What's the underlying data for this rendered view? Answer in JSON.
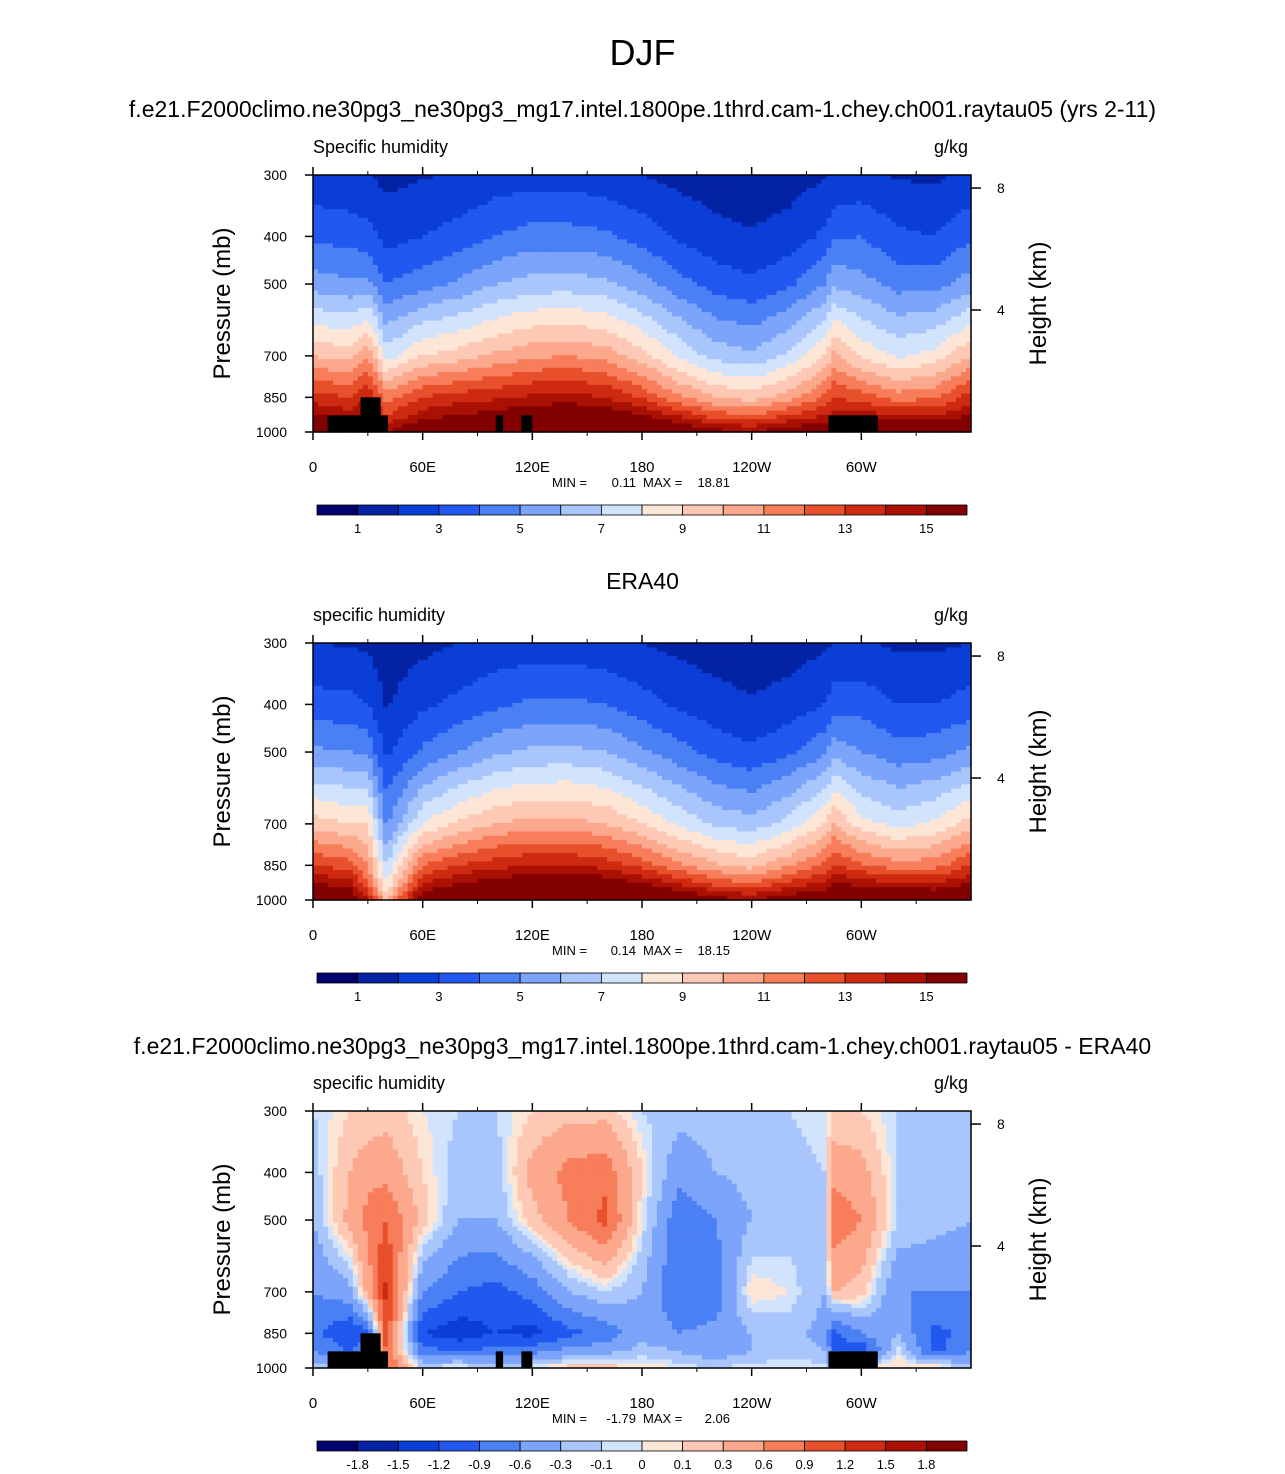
{
  "figure": {
    "title": "DJF"
  },
  "panels": [
    {
      "title": "f.e21.F2000climo.ne30pg3_ne30pg3_mg17.intel.1800pe.1thrd.cam-1.chey.ch001.raytau05 (yrs 2-11)",
      "variable": "Specific humidity",
      "units": "g/kg",
      "min_label": "MIN =",
      "min_value": "0.11",
      "max_label": "MAX =",
      "max_value": "18.81"
    },
    {
      "title": "ERA40",
      "variable": "specific humidity",
      "units": "g/kg",
      "min_label": "MIN =",
      "min_value": "0.14",
      "max_label": "MAX =",
      "max_value": "18.15"
    },
    {
      "title": "f.e21.F2000climo.ne30pg3_ne30pg3_mg17.intel.1800pe.1thrd.cam-1.chey.ch001.raytau05 - ERA40",
      "variable": "specific humidity",
      "units": "g/kg",
      "min_label": "MIN =",
      "min_value": "-1.79",
      "max_label": "MAX =",
      "max_value": "2.06"
    }
  ],
  "axes": {
    "ylabel": "Pressure (mb)",
    "y2label": "Height (km)",
    "xticks": [
      "0",
      "60E",
      "120E",
      "180",
      "120W",
      "60W"
    ],
    "yticks": [
      "300",
      "400",
      "500",
      "700",
      "850",
      "1000"
    ],
    "y2ticks": [
      "8",
      "4"
    ]
  },
  "colorbars": {
    "abs_labels": [
      "1",
      "3",
      "5",
      "7",
      "9",
      "11",
      "13",
      "15"
    ],
    "diff_labels": [
      "-1.8",
      "-1.5",
      "-1.2",
      "-0.9",
      "-0.6",
      "-0.3",
      "-0.1",
      "0",
      "0.1",
      "0.3",
      "0.6",
      "0.9",
      "1.2",
      "1.5",
      "1.8"
    ],
    "colors": [
      "#00006e",
      "#0322a4",
      "#0b3ed6",
      "#2158ef",
      "#4b80f5",
      "#7ba4fa",
      "#a8c5fc",
      "#d2e3fe",
      "#fee6d6",
      "#fdc8b4",
      "#fca88c",
      "#f77d5b",
      "#e8502c",
      "#ce2a11",
      "#aa1103",
      "#830000"
    ]
  },
  "chart_data": [
    {
      "type": "heatmap",
      "title": "f.e21.F2000climo.ne30pg3_ne30pg3_mg17.intel.1800pe.1thrd.cam-1.chey.ch001.raytau05 (yrs 2-11)",
      "variable": "Specific humidity",
      "units": "g/kg",
      "xlabel": "",
      "ylabel": "Pressure (mb)",
      "y2label": "Height (km)",
      "xlim": [
        0,
        360
      ],
      "ylim": [
        1000,
        300
      ],
      "yscale": "log",
      "levels": [
        0,
        1,
        2,
        3,
        4,
        5,
        6,
        7,
        8,
        9,
        10,
        11,
        12,
        13,
        14,
        15
      ],
      "min": 0.11,
      "max": 18.81,
      "lon": [
        0,
        20,
        30,
        40,
        60,
        80,
        100,
        120,
        140,
        160,
        180,
        200,
        220,
        240,
        260,
        280,
        285,
        300,
        320,
        340,
        360
      ],
      "pressure_levels": [
        1000,
        925,
        850,
        700,
        500,
        400,
        300
      ],
      "values": [
        [
          16.5,
          14.0,
          12.5,
          9.0,
          4.5,
          2.8,
          1.2
        ],
        [
          15.0,
          13.5,
          12.0,
          8.5,
          4.2,
          2.6,
          1.1
        ],
        [
          15.0,
          14.0,
          13.0,
          10.0,
          4.2,
          2.4,
          1.0
        ],
        [
          14.0,
          12.0,
          10.5,
          6.5,
          3.0,
          1.6,
          0.7
        ],
        [
          15.5,
          13.5,
          12.0,
          8.0,
          3.6,
          2.0,
          0.9
        ],
        [
          16.0,
          14.0,
          12.5,
          8.5,
          4.2,
          2.4,
          1.1
        ],
        [
          16.5,
          14.5,
          12.8,
          9.2,
          5.0,
          3.0,
          1.4
        ],
        [
          17.0,
          15.0,
          13.2,
          9.8,
          5.4,
          3.4,
          1.5
        ],
        [
          17.5,
          15.2,
          13.4,
          10.0,
          5.5,
          3.4,
          1.5
        ],
        [
          17.2,
          15.0,
          13.0,
          9.6,
          5.2,
          3.2,
          1.3
        ],
        [
          16.5,
          14.0,
          11.8,
          8.4,
          4.4,
          2.6,
          1.0
        ],
        [
          15.5,
          12.8,
          10.2,
          6.8,
          3.4,
          1.8,
          0.7
        ],
        [
          14.5,
          11.5,
          9.0,
          5.6,
          2.6,
          1.3,
          0.5
        ],
        [
          14.0,
          11.0,
          8.5,
          5.2,
          2.2,
          1.1,
          0.4
        ],
        [
          14.8,
          12.0,
          9.5,
          6.2,
          2.8,
          1.4,
          0.5
        ],
        [
          15.5,
          13.0,
          11.2,
          8.0,
          4.0,
          2.2,
          0.9
        ],
        [
          15.0,
          13.5,
          12.0,
          9.2,
          4.8,
          2.8,
          1.1
        ],
        [
          16.0,
          13.5,
          11.5,
          7.8,
          4.4,
          3.0,
          1.2
        ],
        [
          16.0,
          13.0,
          10.5,
          6.8,
          3.6,
          2.2,
          0.9
        ],
        [
          16.0,
          13.0,
          10.8,
          7.4,
          3.6,
          2.0,
          0.8
        ],
        [
          16.5,
          14.0,
          12.5,
          9.0,
          4.5,
          2.8,
          1.2
        ]
      ]
    },
    {
      "type": "heatmap",
      "title": "ERA40",
      "variable": "specific humidity",
      "units": "g/kg",
      "xlabel": "",
      "ylabel": "Pressure (mb)",
      "y2label": "Height (km)",
      "xlim": [
        0,
        360
      ],
      "ylim": [
        1000,
        300
      ],
      "yscale": "log",
      "levels": [
        0,
        1,
        2,
        3,
        4,
        5,
        6,
        7,
        8,
        9,
        10,
        11,
        12,
        13,
        14,
        15
      ],
      "min": 0.14,
      "max": 18.15,
      "lon": [
        0,
        20,
        30,
        40,
        60,
        80,
        100,
        120,
        140,
        160,
        180,
        200,
        220,
        240,
        260,
        280,
        285,
        300,
        320,
        340,
        360
      ],
      "pressure_levels": [
        1000,
        925,
        850,
        700,
        500,
        400,
        300
      ],
      "values": [
        [
          16.0,
          14.0,
          12.0,
          8.5,
          4.2,
          2.4,
          1.0
        ],
        [
          15.5,
          13.5,
          11.5,
          8.0,
          4.0,
          2.3,
          0.9
        ],
        [
          13.0,
          11.0,
          10.0,
          8.0,
          3.8,
          2.0,
          0.8
        ],
        [
          9.0,
          7.0,
          6.0,
          3.8,
          1.8,
          0.9,
          0.4
        ],
        [
          15.0,
          13.0,
          11.0,
          7.0,
          3.2,
          1.8,
          0.7
        ],
        [
          16.0,
          14.0,
          12.0,
          8.2,
          4.0,
          2.3,
          1.0
        ],
        [
          16.8,
          14.6,
          12.6,
          9.0,
          4.8,
          2.8,
          1.3
        ],
        [
          17.2,
          15.0,
          13.0,
          9.4,
          5.2,
          3.2,
          1.4
        ],
        [
          17.5,
          15.2,
          13.0,
          9.4,
          5.3,
          3.2,
          1.4
        ],
        [
          17.2,
          14.8,
          12.6,
          9.0,
          5.0,
          3.0,
          1.2
        ],
        [
          16.5,
          14.0,
          11.6,
          8.0,
          4.2,
          2.4,
          1.0
        ],
        [
          15.6,
          12.8,
          10.2,
          6.8,
          3.4,
          1.8,
          0.7
        ],
        [
          14.6,
          11.6,
          9.2,
          5.8,
          2.6,
          1.4,
          0.5
        ],
        [
          14.0,
          11.0,
          8.6,
          5.4,
          2.2,
          1.1,
          0.4
        ],
        [
          14.8,
          12.2,
          9.8,
          6.4,
          2.8,
          1.4,
          0.5
        ],
        [
          15.5,
          13.2,
          11.2,
          8.0,
          3.8,
          2.0,
          0.8
        ],
        [
          16.0,
          14.0,
          12.0,
          9.0,
          4.6,
          2.6,
          1.0
        ],
        [
          16.2,
          13.6,
          11.2,
          7.4,
          4.0,
          2.6,
          1.1
        ],
        [
          16.0,
          13.0,
          10.4,
          6.6,
          3.4,
          2.0,
          0.8
        ],
        [
          15.8,
          13.0,
          10.6,
          7.2,
          3.6,
          2.0,
          0.8
        ],
        [
          16.0,
          14.0,
          12.0,
          8.5,
          4.2,
          2.4,
          1.0
        ]
      ]
    },
    {
      "type": "heatmap",
      "title": "f.e21.F2000climo.ne30pg3_ne30pg3_mg17.intel.1800pe.1thrd.cam-1.chey.ch001.raytau05 - ERA40",
      "variable": "specific humidity",
      "units": "g/kg",
      "xlabel": "",
      "ylabel": "Pressure (mb)",
      "y2label": "Height (km)",
      "xlim": [
        0,
        360
      ],
      "ylim": [
        1000,
        300
      ],
      "yscale": "log",
      "levels": [
        -1.8,
        -1.5,
        -1.2,
        -0.9,
        -0.6,
        -0.3,
        -0.1,
        0,
        0.1,
        0.3,
        0.6,
        0.9,
        1.2,
        1.5,
        1.8
      ],
      "min": -1.79,
      "max": 2.06,
      "lon": [
        0,
        20,
        30,
        40,
        60,
        80,
        100,
        120,
        140,
        160,
        180,
        200,
        220,
        240,
        260,
        280,
        285,
        300,
        320,
        340,
        360
      ],
      "pressure_levels": [
        1000,
        925,
        850,
        700,
        500,
        400,
        300
      ],
      "values": [
        [
          -0.2,
          -0.6,
          -0.8,
          -0.6,
          -0.3,
          -0.2,
          -0.1
        ],
        [
          -0.3,
          -0.9,
          -1.2,
          -0.4,
          0.4,
          0.3,
          0.1
        ],
        [
          0.2,
          -0.5,
          -1.0,
          0.4,
          0.7,
          0.5,
          0.1
        ],
        [
          1.0,
          0.9,
          1.1,
          1.3,
          0.9,
          0.5,
          0.2
        ],
        [
          -0.1,
          -0.8,
          -1.2,
          -0.6,
          0.2,
          0.1,
          0.0
        ],
        [
          0.1,
          -0.9,
          -1.4,
          -0.9,
          -0.3,
          -0.2,
          -0.1
        ],
        [
          -0.2,
          -0.8,
          -1.2,
          -1.0,
          -0.3,
          -0.2,
          -0.1
        ],
        [
          0.0,
          -0.7,
          -1.3,
          -0.8,
          0.2,
          0.4,
          0.1
        ],
        [
          0.2,
          -0.5,
          -1.0,
          -0.3,
          0.6,
          0.7,
          0.2
        ],
        [
          0.2,
          -0.4,
          -0.8,
          -0.1,
          1.0,
          0.8,
          0.2
        ],
        [
          0.1,
          -0.2,
          -0.4,
          -0.3,
          0.0,
          0.1,
          -0.1
        ],
        [
          0.0,
          -0.3,
          -0.6,
          -0.9,
          -0.8,
          -0.5,
          -0.2
        ],
        [
          -0.1,
          -0.5,
          -0.5,
          -0.8,
          -0.6,
          -0.3,
          -0.2
        ],
        [
          0.0,
          -0.3,
          -0.3,
          0.1,
          -0.3,
          -0.2,
          -0.1
        ],
        [
          0.0,
          -0.2,
          -0.2,
          0.0,
          -0.2,
          -0.2,
          -0.1
        ],
        [
          0.0,
          -0.3,
          -0.4,
          -0.3,
          -0.2,
          -0.1,
          0.0
        ],
        [
          -0.3,
          -0.9,
          -1.0,
          0.3,
          0.8,
          0.5,
          0.1
        ],
        [
          0.2,
          -1.2,
          -0.6,
          0.2,
          0.6,
          0.4,
          0.1
        ],
        [
          0.1,
          0.0,
          -0.3,
          -0.6,
          -0.1,
          -0.1,
          -0.1
        ],
        [
          0.2,
          -1.0,
          -1.0,
          -0.6,
          -0.2,
          -0.2,
          -0.1
        ],
        [
          -0.2,
          -0.6,
          -0.8,
          -0.6,
          -0.3,
          -0.2,
          -0.1
        ]
      ]
    }
  ]
}
